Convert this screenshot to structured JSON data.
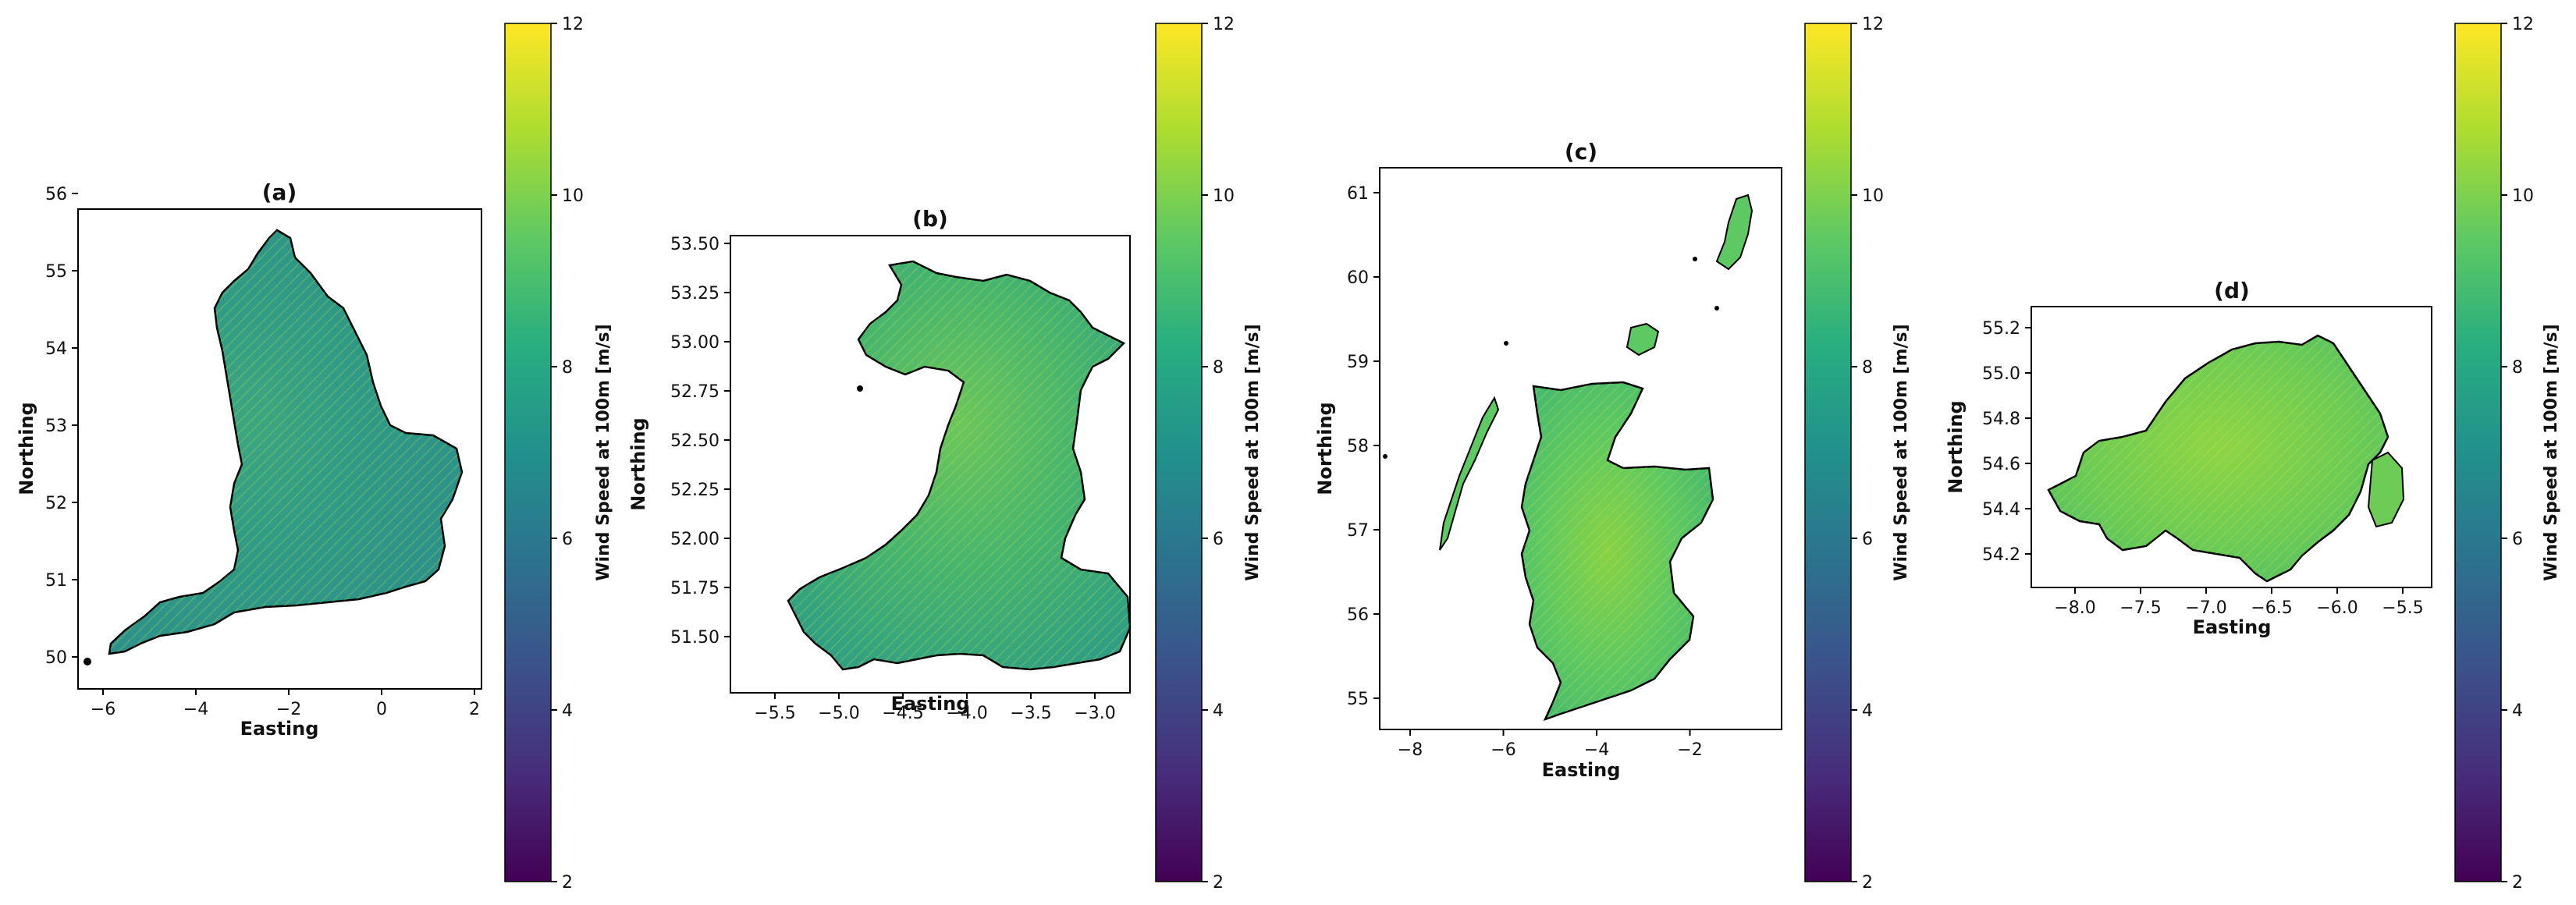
{
  "chart_data": [
    {
      "type": "heatmap",
      "title": "(a)",
      "xlabel": "Easting",
      "ylabel": "Northing",
      "xticks": [
        "−6",
        "−4",
        "−2",
        "0",
        "2"
      ],
      "yticks": [
        "50",
        "51",
        "52",
        "53",
        "54",
        "55",
        "56"
      ],
      "colorbar": {
        "label": "Wind Speed at 100m [m/s]",
        "ticks": [
          "2",
          "4",
          "6",
          "8",
          "10",
          "12"
        ],
        "range": [
          2,
          12
        ],
        "colormap": "viridis"
      }
    },
    {
      "type": "heatmap",
      "title": "(b)",
      "xlabel": "Easting",
      "ylabel": "Northing",
      "xticks": [
        "−5.5",
        "−5.0",
        "−4.5",
        "−4.0",
        "−3.5",
        "−3.0"
      ],
      "yticks": [
        "51.50",
        "51.75",
        "52.00",
        "52.25",
        "52.50",
        "52.75",
        "53.00",
        "53.25",
        "53.50"
      ],
      "colorbar": {
        "label": "Wind Speed at 100m [m/s]",
        "ticks": [
          "2",
          "4",
          "6",
          "8",
          "10",
          "12"
        ],
        "range": [
          2,
          12
        ],
        "colormap": "viridis"
      }
    },
    {
      "type": "heatmap",
      "title": "(c)",
      "xlabel": "Easting",
      "ylabel": "Northing",
      "xticks": [
        "−8",
        "−6",
        "−4",
        "−2"
      ],
      "yticks": [
        "55",
        "56",
        "57",
        "58",
        "59",
        "60",
        "61"
      ],
      "colorbar": {
        "label": "Wind Speed at 100m [m/s]",
        "ticks": [
          "2",
          "4",
          "6",
          "8",
          "10",
          "12"
        ],
        "range": [
          2,
          12
        ],
        "colormap": "viridis"
      }
    },
    {
      "type": "heatmap",
      "title": "(d)",
      "xlabel": "Easting",
      "ylabel": "Northing",
      "xticks": [
        "−8.0",
        "−7.5",
        "−7.0",
        "−6.5",
        "−6.0",
        "−5.5"
      ],
      "yticks": [
        "54.2",
        "54.4",
        "54.6",
        "54.8",
        "55.0",
        "55.2"
      ],
      "colorbar": {
        "label": "Wind Speed at 100m [m/s]",
        "ticks": [
          "2",
          "4",
          "6",
          "8",
          "10",
          "12"
        ],
        "range": [
          2,
          12
        ],
        "colormap": "viridis"
      }
    }
  ]
}
